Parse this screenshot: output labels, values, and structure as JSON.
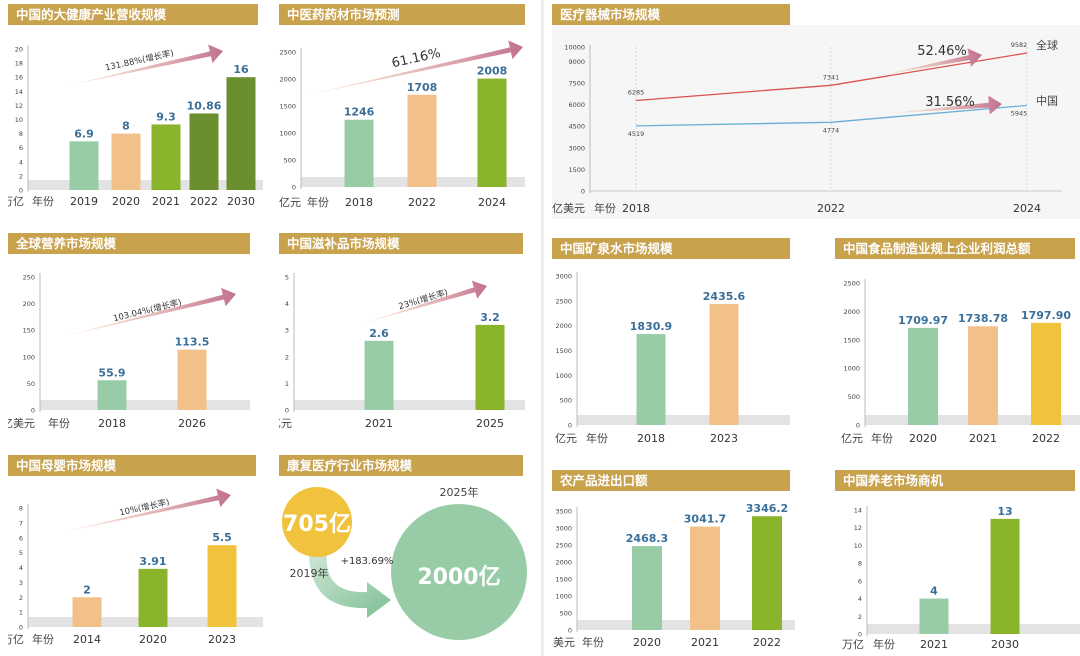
{
  "colors": {
    "title_bg": "#c9a24d",
    "mint": "#98cca6",
    "peach": "#f2c189",
    "green": "#8bb42d",
    "olive": "#6b8f2f",
    "yellow": "#f1c33c",
    "value": "#3a6f9a",
    "red_line": "#d9534f",
    "blue_line": "#6aaed6",
    "arrow_start": "#f6c9a0",
    "arrow_end": "#c07090"
  },
  "chart_data": [
    {
      "id": "health",
      "type": "bar",
      "title": "中国的大健康产业营收规模",
      "unit": "万亿",
      "xlabel": "年份",
      "categories": [
        "2019",
        "2020",
        "2021",
        "2022",
        "2030"
      ],
      "values": [
        6.9,
        8,
        9.3,
        10.86,
        16
      ],
      "value_labels": [
        "6.9",
        "8",
        "9.3",
        "10.86",
        "16"
      ],
      "colors": [
        "#98cca6",
        "#f2c189",
        "#8bb42d",
        "#6b8f2f",
        "#6b8f2f"
      ],
      "ylim": [
        0,
        20
      ],
      "yticks": [
        "0",
        "2",
        "4",
        "6",
        "8",
        "10",
        "12",
        "14",
        "16",
        "18",
        "20"
      ],
      "annotation": "131.88%(增长率)"
    },
    {
      "id": "tcm",
      "type": "bar",
      "title": "中医药药材市场预测",
      "unit": "亿元",
      "xlabel": "年份",
      "categories": [
        "2018",
        "2022",
        "2024"
      ],
      "values": [
        1246,
        1708,
        2008
      ],
      "value_labels": [
        "1246",
        "1708",
        "2008"
      ],
      "colors": [
        "#98cca6",
        "#f2c189",
        "#8bb42d"
      ],
      "ylim": [
        0,
        2500
      ],
      "yticks": [
        "0",
        "500",
        "1000",
        "1500",
        "2000",
        "2500"
      ],
      "annotation": "61.16%"
    },
    {
      "id": "nutrition",
      "type": "bar",
      "title": "全球营养市场规模",
      "unit": "亿美元",
      "xlabel": "年份",
      "categories": [
        "2018",
        "2026"
      ],
      "values": [
        55.9,
        113.5
      ],
      "value_labels": [
        "55.9",
        "113.5"
      ],
      "colors": [
        "#98cca6",
        "#f2c189"
      ],
      "ylim": [
        0,
        250
      ],
      "yticks": [
        "0",
        "50",
        "100",
        "150",
        "200",
        "250"
      ],
      "annotation": "103.04%(增长率)"
    },
    {
      "id": "tonic",
      "type": "bar",
      "title": "中国滋补品市场规模",
      "unit": "千亿元",
      "xlabel": "",
      "categories": [
        "2021",
        "2025"
      ],
      "values": [
        2.6,
        3.2
      ],
      "value_labels": [
        "2.6",
        "3.2"
      ],
      "colors": [
        "#98cca6",
        "#8bb42d"
      ],
      "ylim": [
        0,
        5
      ],
      "yticks": [
        "0",
        "1",
        "2",
        "3",
        "4",
        "5"
      ],
      "annotation": "23%(增长率)"
    },
    {
      "id": "maternal",
      "type": "bar",
      "title": "中国母婴市场规模",
      "unit": "万亿",
      "xlabel": "年份",
      "categories": [
        "2014",
        "2020",
        "2023"
      ],
      "values": [
        2,
        3.91,
        5.5
      ],
      "value_labels": [
        "2",
        "3.91",
        "5.5"
      ],
      "colors": [
        "#f2c189",
        "#8bb42d",
        "#f1c33c"
      ],
      "ylim": [
        0,
        8
      ],
      "yticks": [
        "0",
        "1",
        "2",
        "3",
        "4",
        "5",
        "6",
        "7",
        "8"
      ],
      "annotation": "10%(增长率)"
    },
    {
      "id": "devices",
      "type": "line",
      "title": "医疗器械市场规模",
      "unit": "亿美元",
      "xlabel": "年份",
      "x": [
        "2018",
        "2022",
        "2024"
      ],
      "ylim": [
        0,
        10000
      ],
      "yticks": [
        "0",
        "1500",
        "3000",
        "4500",
        "6000",
        "7500",
        "9000",
        "10000"
      ],
      "series": [
        {
          "name": "全球",
          "values": [
            6285,
            7341,
            9582
          ],
          "labels": [
            "6285",
            "7341",
            "9582"
          ],
          "color": "#d9534f",
          "growth": "52.46%"
        },
        {
          "name": "中国",
          "values": [
            4519,
            4774,
            5945
          ],
          "labels": [
            "4519",
            "4774",
            "5945"
          ],
          "color": "#6aaed6",
          "growth": "31.56%"
        }
      ]
    },
    {
      "id": "water",
      "type": "bar",
      "title": "中国矿泉水市场规模",
      "unit": "亿元",
      "xlabel": "年份",
      "categories": [
        "2018",
        "2023"
      ],
      "values": [
        1830.9,
        2435.6
      ],
      "value_labels": [
        "1830.9",
        "2435.6"
      ],
      "colors": [
        "#98cca6",
        "#f2c189"
      ],
      "ylim": [
        0,
        3000
      ],
      "yticks": [
        "0",
        "500",
        "1000",
        "1500",
        "2000",
        "2500",
        "3000"
      ]
    },
    {
      "id": "food",
      "type": "bar",
      "title": "中国食品制造业规上企业利润总额",
      "unit": "亿元",
      "xlabel": "年份",
      "categories": [
        "2020",
        "2021",
        "2022"
      ],
      "values": [
        1709.97,
        1738.78,
        1797.9
      ],
      "value_labels": [
        "1709.97",
        "1738.78",
        "1797.90"
      ],
      "colors": [
        "#98cca6",
        "#f2c189",
        "#f1c33c"
      ],
      "ylim": [
        0,
        2500
      ],
      "yticks": [
        "0",
        "500",
        "1000",
        "1500",
        "2000",
        "2500"
      ]
    },
    {
      "id": "agri",
      "type": "bar",
      "title": "农产品进出口额",
      "unit": "亿美元",
      "xlabel": "年份",
      "categories": [
        "2020",
        "2021",
        "2022"
      ],
      "values": [
        2468.3,
        3041.7,
        3346.2
      ],
      "value_labels": [
        "2468.3",
        "3041.7",
        "3346.2"
      ],
      "colors": [
        "#98cca6",
        "#f2c189",
        "#8bb42d"
      ],
      "ylim": [
        0,
        3500
      ],
      "yticks": [
        "0",
        "500",
        "1000",
        "1500",
        "2000",
        "2500",
        "3000",
        "3500"
      ]
    },
    {
      "id": "elderly",
      "type": "bar",
      "title": "中国养老市场商机",
      "unit": "万亿",
      "xlabel": "年份",
      "categories": [
        "2021",
        "2030"
      ],
      "values": [
        4,
        13
      ],
      "value_labels": [
        "4",
        "13"
      ],
      "colors": [
        "#98cca6",
        "#8bb42d"
      ],
      "ylim": [
        0,
        14
      ],
      "yticks": [
        "0",
        "2",
        "4",
        "6",
        "8",
        "10",
        "12",
        "14"
      ]
    },
    {
      "id": "rehab",
      "type": "bubble",
      "title": "康复医疗行业市场规模",
      "small": {
        "value": "705亿",
        "year": "2019年",
        "color": "#f1c33c"
      },
      "large": {
        "value": "2000亿",
        "year": "2025年",
        "color": "#98cca6"
      },
      "growth": "+183.69%"
    }
  ]
}
